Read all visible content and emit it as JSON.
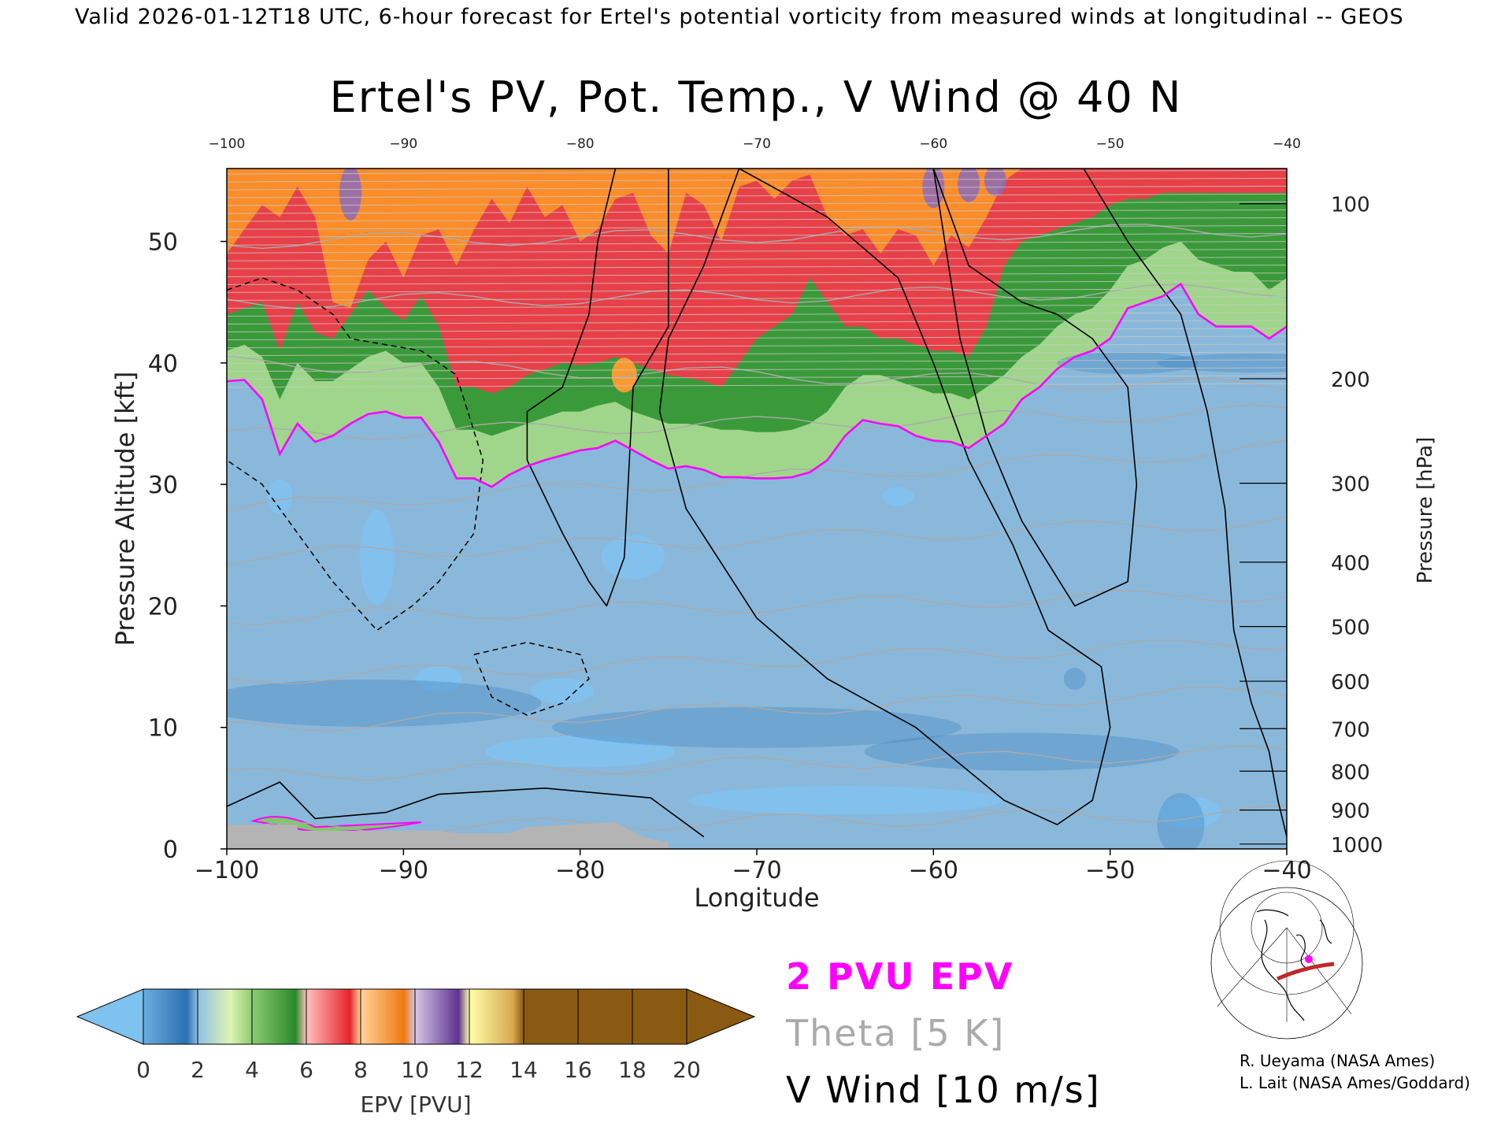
{
  "header": "Valid 2026-01-12T18 UTC, 6-hour forecast for Ertel's potential vorticity from measured winds at longitudinal -- GEOS",
  "chart_data": {
    "type": "heatmap",
    "title": "Ertel's PV, Pot. Temp., V Wind @ 40 N",
    "xlabel": "Longitude",
    "ylabel_left": "Pressure Altitude [kft]",
    "ylabel_right": "Pressure [hPa]",
    "xlim": [
      -100,
      -40
    ],
    "ylim_kft": [
      0,
      56
    ],
    "x_ticks": [
      -100,
      -90,
      -80,
      -70,
      -60,
      -50,
      -40
    ],
    "x_tick_labels": [
      "−100",
      "−90",
      "−80",
      "−70",
      "−60",
      "−50",
      "−40"
    ],
    "top_tick_labels": [
      "−100",
      "−90",
      "−80",
      "−70",
      "−60",
      "−50",
      "−40"
    ],
    "y_ticks_kft": [
      0,
      10,
      20,
      30,
      40,
      50
    ],
    "y_tick_labels": [
      "0",
      "10",
      "20",
      "30",
      "40",
      "50"
    ],
    "pressure_ticks": [
      {
        "hPa": 100,
        "label": "100",
        "kft": 53.1
      },
      {
        "hPa": 200,
        "label": "200",
        "kft": 38.7
      },
      {
        "hPa": 300,
        "label": "300",
        "kft": 30.1
      },
      {
        "hPa": 400,
        "label": "400",
        "kft": 23.6
      },
      {
        "hPa": 500,
        "label": "500",
        "kft": 18.3
      },
      {
        "hPa": 600,
        "label": "600",
        "kft": 13.8
      },
      {
        "hPa": 700,
        "label": "700",
        "kft": 9.9
      },
      {
        "hPa": 800,
        "label": "800",
        "kft": 6.4
      },
      {
        "hPa": 900,
        "label": "900",
        "kft": 3.2
      },
      {
        "hPa": 1000,
        "label": "1000",
        "kft": 0.4
      }
    ],
    "tropopause_2pvu": {
      "label": "2 PVU EPV",
      "color": "#ff00ff",
      "x": [
        -100,
        -99,
        -98,
        -97,
        -96,
        -95,
        -94,
        -93,
        -92,
        -91,
        -90,
        -89,
        -88,
        -87,
        -86,
        -85,
        -84,
        -83,
        -82,
        -81,
        -80,
        -79,
        -78,
        -77,
        -76,
        -75,
        -74,
        -73,
        -72,
        -71,
        -70,
        -69,
        -68,
        -67,
        -66,
        -65,
        -64,
        -63,
        -62,
        -61,
        -60,
        -59,
        -58,
        -57,
        -56,
        -55,
        -54,
        -53,
        -52,
        -51,
        -50,
        -49,
        -48,
        -47,
        -46,
        -45,
        -44,
        -43,
        -42,
        -41,
        -40
      ],
      "y": [
        38.5,
        38.6,
        37.0,
        32.5,
        35.0,
        33.5,
        34.0,
        35.0,
        35.8,
        36.0,
        35.5,
        35.5,
        33.5,
        30.5,
        30.5,
        29.8,
        30.8,
        31.5,
        32.0,
        32.4,
        32.8,
        33.0,
        33.6,
        32.8,
        32.0,
        31.3,
        31.5,
        31.2,
        30.6,
        30.6,
        30.5,
        30.5,
        30.6,
        31.0,
        32.0,
        34.0,
        35.3,
        35.0,
        34.8,
        34.0,
        33.6,
        33.5,
        33.0,
        34.0,
        35.0,
        37.0,
        38.0,
        39.5,
        40.5,
        41.0,
        42.0,
        44.5,
        45.0,
        45.5,
        46.5,
        44.0,
        43.0,
        43.0,
        43.0,
        42.0,
        43.0
      ]
    },
    "pv_bands": [
      {
        "pvu_min": 0,
        "pvu_max": 2,
        "color": "#8ab8da",
        "top_y": [
          38.5,
          38.6,
          37.0,
          32.5,
          35.0,
          33.5,
          34.0,
          35.0,
          35.8,
          36.0,
          35.5,
          35.5,
          33.5,
          30.5,
          30.5,
          29.8,
          30.8,
          31.5,
          32.0,
          32.4,
          32.8,
          33.0,
          33.6,
          32.8,
          32.0,
          31.3,
          31.5,
          31.2,
          30.6,
          30.6,
          30.5,
          30.5,
          30.6,
          31.0,
          32.0,
          34.0,
          35.3,
          35.0,
          34.8,
          34.0,
          33.6,
          33.5,
          33.0,
          34.0,
          35.0,
          37.0,
          38.0,
          39.5,
          40.5,
          41.0,
          42.0,
          44.5,
          45.0,
          45.5,
          46.5,
          44.0,
          43.0,
          43.0,
          43.0,
          42.0,
          43.0
        ]
      },
      {
        "pvu_min": 2,
        "pvu_max": 4,
        "color": "#9fd68b",
        "top_y": [
          41.0,
          41.5,
          40.5,
          37.0,
          40.0,
          38.5,
          38.5,
          39.5,
          40.5,
          41.0,
          40.0,
          40.0,
          38.0,
          34.5,
          34.5,
          34.0,
          34.5,
          35.0,
          35.5,
          36.0,
          36.0,
          36.5,
          36.8,
          36.0,
          35.5,
          35.0,
          35.0,
          34.8,
          34.5,
          34.5,
          34.3,
          34.3,
          34.5,
          35.0,
          36.0,
          38.0,
          39.0,
          39.0,
          38.5,
          38.0,
          37.5,
          37.5,
          37.0,
          38.0,
          39.0,
          40.5,
          41.5,
          43.0,
          44.0,
          44.5,
          46.0,
          48.0,
          48.5,
          49.5,
          50.0,
          48.5,
          48.0,
          47.5,
          47.5,
          46.0,
          47.0
        ]
      },
      {
        "pvu_min": 4,
        "pvu_max": 6,
        "color": "#3a9a3a",
        "top_y": [
          44.0,
          44.5,
          45.0,
          41.0,
          45.0,
          42.5,
          42.0,
          44.0,
          46.0,
          44.5,
          43.5,
          45.5,
          43.0,
          38.0,
          38.0,
          37.5,
          38.0,
          39.0,
          39.5,
          40.0,
          39.8,
          40.0,
          40.5,
          40.0,
          39.5,
          39.0,
          38.8,
          38.5,
          38.0,
          40.0,
          42.0,
          43.0,
          44.0,
          47.0,
          45.0,
          43.0,
          43.0,
          42.0,
          42.0,
          41.5,
          41.0,
          41.0,
          40.5,
          43.0,
          48.0,
          50.0,
          50.5,
          51.0,
          51.5,
          52.0,
          53.0,
          53.5,
          53.5,
          54.0,
          54.0,
          54.0,
          54.0,
          54.0,
          54.0,
          54.0,
          54.0
        ]
      },
      {
        "pvu_min": 6,
        "pvu_max": 10,
        "color": "#e84048",
        "top_y": [
          49.0,
          51.0,
          53.0,
          52.0,
          54.5,
          52.0,
          45.0,
          44.5,
          48.5,
          50.0,
          47.0,
          50.5,
          51.0,
          48.0,
          51.0,
          53.5,
          51.5,
          54.5,
          52.0,
          53.0,
          50.0,
          51.0,
          53.5,
          54.0,
          50.5,
          49.0,
          54.0,
          53.0,
          50.0,
          54.5,
          55.0,
          53.5,
          55.0,
          55.5,
          52.0,
          50.5,
          51.0,
          49.0,
          51.0,
          50.5,
          48.0,
          50.5,
          49.5,
          52.0,
          55.0,
          56,
          56,
          56,
          56,
          56,
          56,
          56,
          56,
          56,
          56,
          56,
          56,
          56,
          56,
          56,
          56
        ]
      },
      {
        "pvu_min": 10,
        "pvu_max": 14,
        "color": "#fb8d2a",
        "top_y": [
          56,
          56,
          56,
          56,
          56,
          56,
          56,
          56,
          56,
          56,
          56,
          56,
          56,
          56,
          56,
          56,
          56,
          56,
          56,
          56,
          56,
          56,
          56,
          56,
          56,
          56,
          56,
          56,
          56,
          56,
          56,
          56,
          56,
          56,
          56,
          56,
          56,
          56,
          56,
          56,
          56,
          56,
          56,
          56,
          56,
          56,
          56,
          56,
          56,
          56,
          56,
          56,
          56,
          56,
          56,
          56,
          56,
          56,
          56,
          56,
          56
        ]
      }
    ],
    "v_wind_contours_10ms": [
      {
        "x": [
          -78,
          -79,
          -79.5,
          -80.5,
          -81,
          -83,
          -83,
          -81,
          -79.5,
          -78.5,
          -77.5,
          -77,
          -75,
          -75
        ],
        "y": [
          56,
          50,
          44,
          40,
          38,
          36,
          32,
          26,
          22,
          20,
          24,
          38,
          43,
          56
        ]
      },
      {
        "x": [
          -71,
          -72,
          -73,
          -75,
          -75.5,
          -74,
          -70,
          -66,
          -61,
          -56,
          -53,
          -51,
          -50,
          -50.5,
          -53.5,
          -55.5,
          -58,
          -60,
          -62,
          -66,
          -71
        ],
        "y": [
          56,
          52,
          48,
          42,
          36,
          28,
          19,
          14,
          10,
          4,
          2,
          4,
          10,
          15,
          18,
          25,
          32,
          40,
          47,
          52,
          56
        ]
      },
      {
        "x": [
          -60,
          -58,
          -55,
          -53,
          -51,
          -49,
          -48.5,
          -49,
          -52,
          -55,
          -57,
          -58.5,
          -60
        ],
        "y": [
          56,
          48,
          45,
          44,
          42,
          38,
          30,
          22,
          20,
          27,
          34,
          42,
          56
        ]
      },
      {
        "x": [
          -51.5,
          -49,
          -46,
          -44.5,
          -43.5,
          -43,
          -42,
          -41,
          -40.5,
          -40
        ],
        "y": [
          56,
          50,
          44,
          36,
          28,
          18,
          12,
          8,
          4,
          1
        ]
      }
    ],
    "v_wind_dashed_contours": [
      {
        "x": [
          -100,
          -98,
          -96,
          -94,
          -93,
          -91,
          -89,
          -87,
          -85.5,
          -86,
          -88,
          -89.5,
          -91.5,
          -94,
          -96,
          -98,
          -100
        ],
        "y": [
          46,
          47,
          46,
          44,
          42,
          41.5,
          41,
          39,
          32,
          26,
          22,
          20,
          18,
          22,
          26,
          30,
          32
        ]
      },
      {
        "x": [
          -86,
          -83,
          -80,
          -79.5,
          -81,
          -83,
          -85,
          -86
        ],
        "y": [
          16,
          17,
          16,
          14,
          12,
          11,
          12.5,
          16
        ]
      }
    ],
    "theta_contours_5K": {
      "label": "Theta [5 K]",
      "color": "#aaaaaa",
      "levels_K": [
        280,
        300,
        310,
        320,
        330,
        340,
        350,
        360,
        370,
        380,
        390
      ],
      "kft_at_start": [
        1.5,
        6,
        10,
        14,
        19,
        24,
        28,
        34,
        40,
        45,
        50
      ],
      "kft_at_end": [
        3,
        8,
        13,
        17,
        21,
        27,
        33,
        36,
        38,
        46,
        51
      ]
    },
    "colorbar": {
      "label": "EPV [PVU]",
      "ticks": [
        "0",
        "2",
        "4",
        "6",
        "8",
        "10",
        "12",
        "14",
        "16",
        "18",
        "20"
      ],
      "colors": [
        "#7ec2ef",
        "#2f7ab8",
        "#8fbee0",
        "#d6efaa",
        "#7ec86b",
        "#2f8f2f",
        "#ffb3b3",
        "#e8282e",
        "#ffc985",
        "#f7801e",
        "#c7b5d8",
        "#6a3d9a",
        "#ffff99",
        "#8a5a12"
      ]
    },
    "legend": [
      {
        "text": "2 PVU EPV",
        "color": "#ff00ff"
      },
      {
        "text": "Theta [5 K]",
        "color": "#aaaaaa"
      },
      {
        "text": "V Wind [10 m/s]",
        "color": "#000000"
      }
    ],
    "credits": [
      "R. Ueyama (NASA Ames)",
      "L. Lait (NASA Ames/Goddard)"
    ]
  }
}
